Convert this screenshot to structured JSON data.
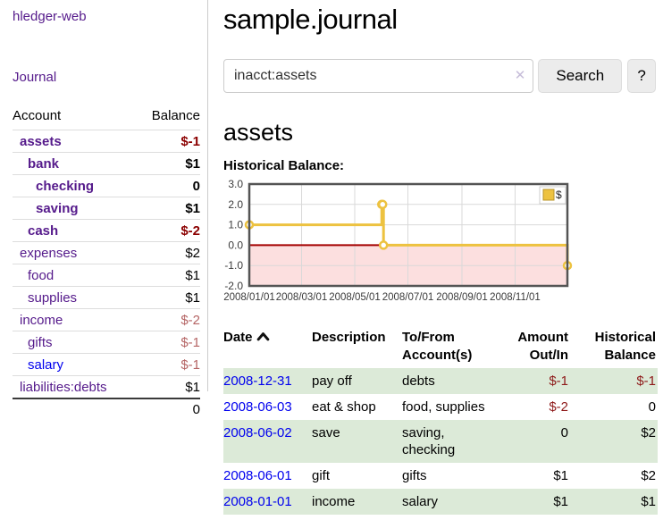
{
  "sidebar": {
    "app_title": "hledger-web",
    "nav_journal": "Journal",
    "accounts_table": {
      "account_header": "Account",
      "balance_header": "Balance",
      "rows": [
        {
          "name": "assets",
          "level": 1,
          "bold": true,
          "link_color": "purple",
          "balance": "$-1",
          "balance_class": "neg-strong"
        },
        {
          "name": "bank",
          "level": 2,
          "bold": true,
          "link_color": "purple",
          "balance": "$1",
          "balance_class": "pos"
        },
        {
          "name": "checking",
          "level": 3,
          "bold": true,
          "link_color": "purple",
          "balance": "0",
          "balance_class": "pos"
        },
        {
          "name": "saving",
          "level": 3,
          "bold": true,
          "link_color": "purple",
          "balance": "$1",
          "balance_class": "pos"
        },
        {
          "name": "cash",
          "level": 2,
          "bold": true,
          "link_color": "purple",
          "balance": "$-2",
          "balance_class": "neg-strong"
        },
        {
          "name": "expenses",
          "level": 1,
          "bold": false,
          "link_color": "purple",
          "balance": "$2",
          "balance_class": "pos"
        },
        {
          "name": "food",
          "level": 2,
          "bold": false,
          "link_color": "purple",
          "balance": "$1",
          "balance_class": "pos"
        },
        {
          "name": "supplies",
          "level": 2,
          "bold": false,
          "link_color": "purple",
          "balance": "$1",
          "balance_class": "pos"
        },
        {
          "name": "income",
          "level": 1,
          "bold": false,
          "link_color": "purple",
          "balance": "$-2",
          "balance_class": "neg-light"
        },
        {
          "name": "gifts",
          "level": 2,
          "bold": false,
          "link_color": "purple",
          "balance": "$-1",
          "balance_class": "neg-light"
        },
        {
          "name": "salary",
          "level": 2,
          "bold": false,
          "link_color": "blue",
          "balance": "$-1",
          "balance_class": "neg-light"
        },
        {
          "name": "liabilities:debts",
          "level": 1,
          "bold": false,
          "link_color": "purple",
          "balance": "$1",
          "balance_class": "pos"
        }
      ],
      "total": "0"
    }
  },
  "header": {
    "title": "sample.journal"
  },
  "search": {
    "query": "inacct:assets",
    "clear_label": "✕",
    "search_button": "Search",
    "help_button": "?"
  },
  "account_page": {
    "heading": "assets",
    "chart_label": "Historical Balance:"
  },
  "chart_data": {
    "type": "line",
    "step": true,
    "title": "Historical Balance",
    "series": [
      {
        "name": "$",
        "points": [
          {
            "date": "2008-01-01",
            "value": 1
          },
          {
            "date": "2008-06-01",
            "value": 2
          },
          {
            "date": "2008-06-02",
            "value": 2
          },
          {
            "date": "2008-06-03",
            "value": 0
          },
          {
            "date": "2008-12-31",
            "value": -1
          }
        ]
      }
    ],
    "x_range": [
      "2008-01-01",
      "2008-12-31"
    ],
    "ylim": [
      -2,
      3
    ],
    "y_ticks": [
      3,
      2,
      1,
      0,
      -1,
      -2
    ],
    "x_ticks": [
      {
        "date": "2008-01-01",
        "label": "2008/01/01"
      },
      {
        "date": "2008-03-01",
        "label": "2008/03/01"
      },
      {
        "date": "2008-05-01",
        "label": "2008/05/01"
      },
      {
        "date": "2008-07-01",
        "label": "2008/07/01"
      },
      {
        "date": "2008-09-01",
        "label": "2008/09/01"
      },
      {
        "date": "2008-11-01",
        "label": "2008/11/01"
      }
    ],
    "legend": {
      "position": "top-right",
      "label": "$"
    },
    "grid": true,
    "colors": {
      "line": "#edc240",
      "marker_fill": "#ffffff",
      "negative_region": "#fcdfdf",
      "zero_line": "#a40000",
      "grid": "#d9d9d9",
      "border": "#545454",
      "tick_text": "#3c3c3c",
      "legend_border": "#cccccc",
      "legend_swatch_border": "#b9942a"
    }
  },
  "register": {
    "headers": {
      "date": "Date",
      "description": "Description",
      "accounts": "To/From Account(s)",
      "amount": "Amount Out/In",
      "balance": "Historical Balance"
    },
    "rows": [
      {
        "date": "2008-12-31",
        "description": "pay off",
        "accounts": "debts",
        "amount": "$-1",
        "amount_class": "neg",
        "balance": "$-1",
        "balance_class": "neg",
        "stripe": true
      },
      {
        "date": "2008-06-03",
        "description": "eat & shop",
        "accounts": "food, supplies",
        "amount": "$-2",
        "amount_class": "neg",
        "balance": "0",
        "balance_class": "pos",
        "stripe": false
      },
      {
        "date": "2008-06-02",
        "description": "save",
        "accounts": "saving, checking",
        "amount": "0",
        "amount_class": "pos",
        "balance": "$2",
        "balance_class": "pos",
        "stripe": true
      },
      {
        "date": "2008-06-01",
        "description": "gift",
        "accounts": "gifts",
        "amount": "$1",
        "amount_class": "pos",
        "balance": "$2",
        "balance_class": "pos",
        "stripe": false
      },
      {
        "date": "2008-01-01",
        "description": "income",
        "accounts": "salary",
        "amount": "$1",
        "amount_class": "pos",
        "balance": "$1",
        "balance_class": "pos",
        "stripe": true
      }
    ]
  }
}
